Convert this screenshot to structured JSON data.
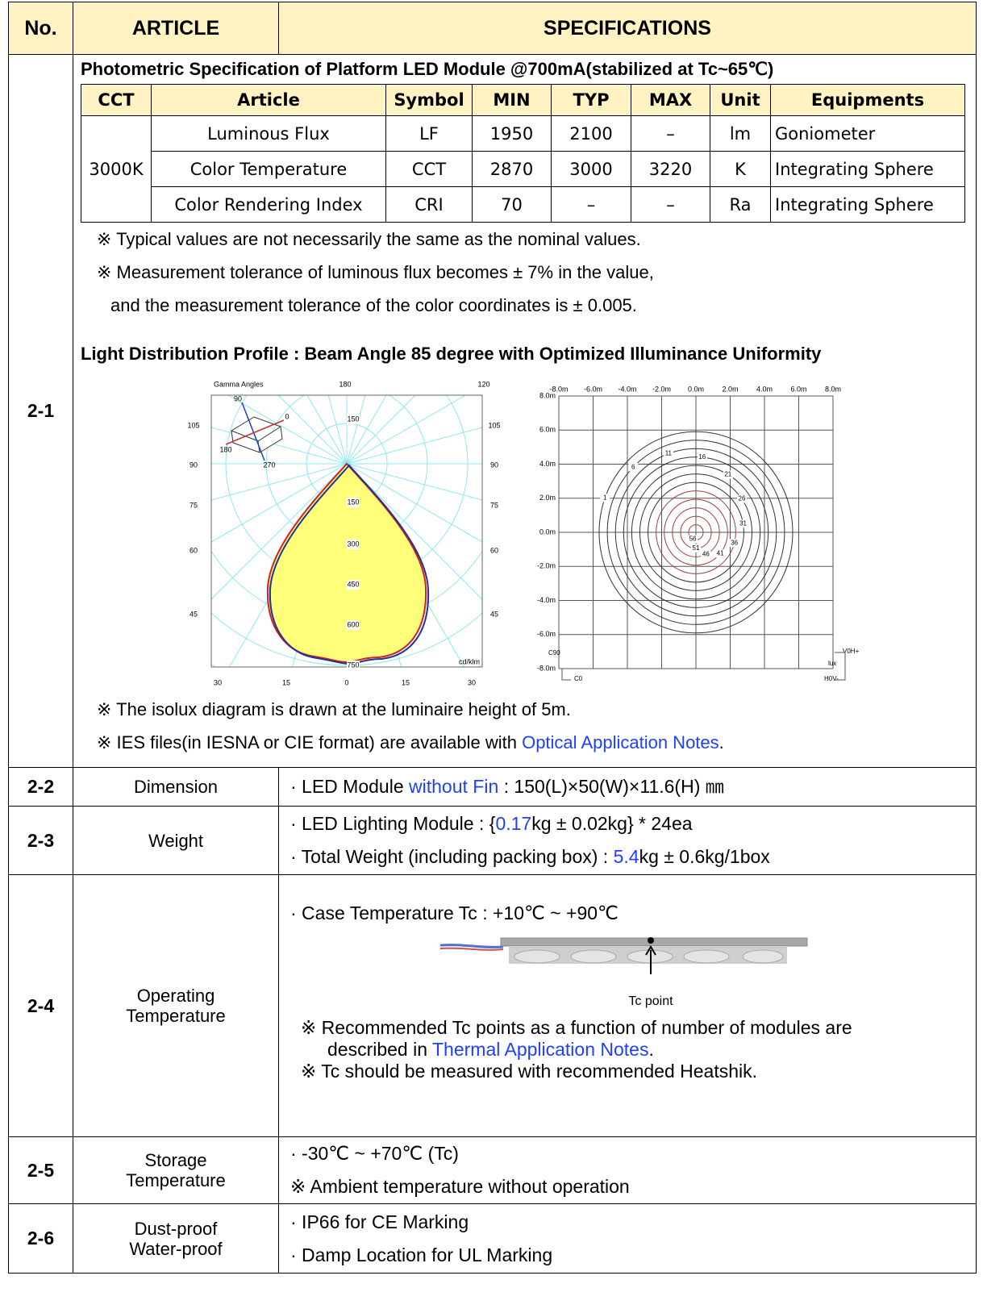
{
  "header": {
    "no": "No.",
    "article": "ARTICLE",
    "specifications": "SPECIFICATIONS"
  },
  "row_2_1": {
    "no": "2-1",
    "photometric_title": "Photometric Specification of Platform LED Module @700mA(stabilized at Tc~65℃)",
    "photometric_table": {
      "headers": [
        "CCT",
        "Article",
        "Symbol",
        "MIN",
        "TYP",
        "MAX",
        "Unit",
        "Equipments"
      ],
      "cct": "3000K",
      "rows": [
        [
          "Luminous Flux",
          "LF",
          "1950",
          "2100",
          "–",
          "lm",
          "Goniometer"
        ],
        [
          "Color Temperature",
          "CCT",
          "2870",
          "3000",
          "3220",
          "K",
          "Integrating Sphere"
        ],
        [
          "Color Rendering Index",
          "CRI",
          "70",
          "–",
          "–",
          "Ra",
          "Integrating Sphere"
        ]
      ]
    },
    "notes": [
      "※ Typical values are not necessarily the same as the nominal values.",
      "※ Measurement  tolerance of luminous flux becomes ± 7% in the value,",
      "and the measurement tolerance of the color coordinates is ± 0.005."
    ],
    "distribution_title": "Light Distribution Profile : Beam Angle 85 degree with Optimized Illuminance Uniformity",
    "polar_diagram": {
      "title": "Gamma Angles",
      "top_labels": [
        "180",
        "120"
      ],
      "left_labels": [
        "105",
        "90",
        "75",
        "60",
        "45"
      ],
      "right_labels": [
        "105",
        "90",
        "75",
        "60",
        "45"
      ],
      "bottom_labels": [
        "30",
        "15",
        "0",
        "15",
        "30"
      ],
      "intensity_labels": [
        "150",
        "150",
        "300",
        "450",
        "600",
        "750"
      ],
      "unit": "cd/klm",
      "axis_icon_labels": [
        "90",
        "0",
        "180",
        "270"
      ]
    },
    "isolux_diagram": {
      "x_labels": [
        "-8.0m",
        "-6.0m",
        "-4.0m",
        "-2.0m",
        "0.0m",
        "2.0m",
        "4.0m",
        "6.0m",
        "8.0m"
      ],
      "y_labels": [
        "8.0m",
        "6.0m",
        "4.0m",
        "2.0m",
        "0.0m",
        "-2.0m",
        "-4.0m",
        "-6.0m",
        "-8.0m"
      ],
      "contour_labels": [
        "1",
        "6",
        "11",
        "16",
        "21",
        "26",
        "31",
        "36",
        "41",
        "46",
        "51",
        "56"
      ],
      "c90": "C90",
      "c0": "C0",
      "v0h": "V0H+",
      "h0v": "H0V-",
      "unit": "lux"
    },
    "notes_after": [
      [
        "※ The isolux diagram is drawn at the luminaire height of 5m."
      ],
      [
        "※ IES files(in IESNA or CIE format) are available with ",
        {
          "text": "Optical Application Notes",
          "color": "#1f3fff"
        },
        "."
      ]
    ]
  },
  "row_2_2": {
    "no": "2-2",
    "article": [
      "Dimension"
    ],
    "lines": [
      [
        "· LED Module ",
        {
          "text": "without Fin",
          "color": "#1f3fff"
        },
        " : 150(L)×50(W)×11.6(H) ㎜"
      ]
    ]
  },
  "row_2_3": {
    "no": "2-3",
    "article": [
      "Weight"
    ],
    "lines": [
      [
        "· LED Lighting Module : {",
        {
          "text": "0.17",
          "color": "#1f3fff"
        },
        "kg ± 0.02kg} * 24ea"
      ],
      [
        "· Total Weight (including packing box) : ",
        {
          "text": "5.4",
          "color": "#1f3fff"
        },
        "kg ± 0.6kg/1box"
      ]
    ]
  },
  "row_2_4": {
    "no": "2-4",
    "article": [
      "Operating",
      "Temperature"
    ],
    "case_temperature": "· Case Temperature Tc : +10℃ ~ +90℃",
    "figure_label": "Tc point",
    "notes": [
      [
        "※ Recommended Tc points as a function of number of modules are"
      ],
      [
        "described in ",
        {
          "text": "Thermal Application Notes",
          "color": "#1f3fff"
        },
        "."
      ],
      [
        "※ Tc should be measured with recommended Heatshik."
      ]
    ]
  },
  "row_2_5": {
    "no": "2-5",
    "article": [
      "Storage",
      "Temperature"
    ],
    "lines": [
      [
        "· -30℃ ~ +70℃ (Tc)"
      ],
      [
        "※ Ambient temperature without operation"
      ]
    ]
  },
  "row_2_6": {
    "no": "2-6",
    "article": [
      "Dust-proof",
      "Water-proof"
    ],
    "lines": [
      [
        "· IP66 for CE Marking"
      ],
      [
        "· Damp Location for UL Marking"
      ]
    ]
  }
}
